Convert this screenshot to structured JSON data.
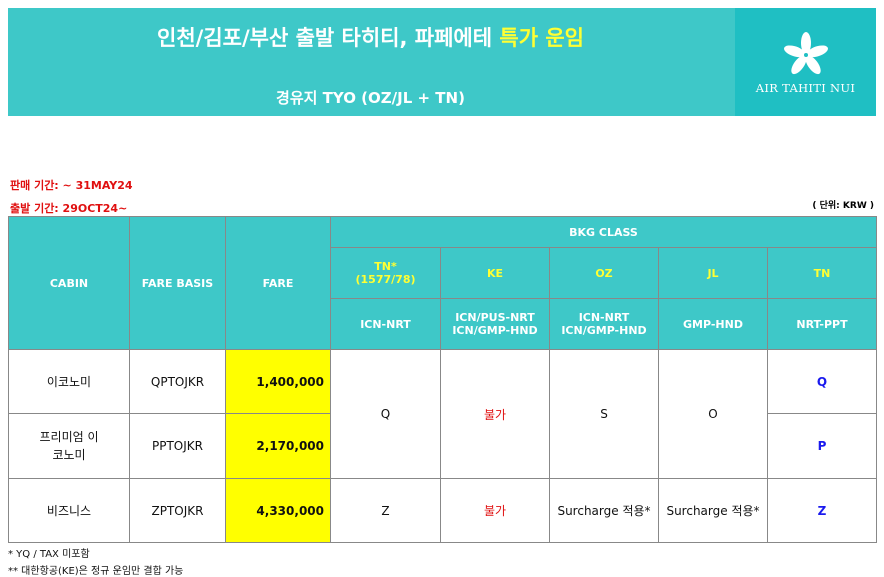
{
  "banner": {
    "title_main": "인천/김포/부산 출발 타히티, 파페에테 ",
    "title_highlight": "특가 운임",
    "subtitle": "경유지 TYO (OZ/JL + TN)",
    "logo_text": "AIR TAHITI NUI",
    "logo_icon": "tiare-flower-icon"
  },
  "info": {
    "sale_period": "판매 기간:  ~ 31MAY24",
    "departure_period": "출발 기간:  29OCT24~",
    "unit": "( 단위: KRW )"
  },
  "table": {
    "headers": {
      "cabin": "CABIN",
      "fare_basis": "FARE BASIS",
      "fare": "FARE",
      "bkg_class": "BKG CLASS",
      "airlines": [
        {
          "code": "TN*",
          "code2": "(1577/78)",
          "route": "ICN-NRT"
        },
        {
          "code": "KE",
          "code2": "",
          "route": "ICN/PUS-NRT ICN/GMP-HND"
        },
        {
          "code": "OZ",
          "code2": "",
          "route": "ICN-NRT ICN/GMP-HND"
        },
        {
          "code": "JL",
          "code2": "",
          "route": "GMP-HND"
        },
        {
          "code": "TN",
          "code2": "",
          "route": "NRT-PPT"
        }
      ]
    },
    "rows": [
      {
        "cabin": "이코노미",
        "basis": "QPTOJKR",
        "fare": "1,400,000",
        "tn_ppt": "Q"
      },
      {
        "cabin": "프리미엄 이코노미",
        "basis": "PPTOJKR",
        "fare": "2,170,000",
        "tn_ppt": "P"
      },
      {
        "cabin": "비즈니스",
        "basis": "ZPTOJKR",
        "fare": "4,330,000",
        "tn_ppt": "Z"
      }
    ],
    "merged": {
      "tn_econ": "Q",
      "ke_econ": "불가",
      "oz_econ": "S",
      "jl_econ": "O"
    },
    "biz": {
      "tn": "Z",
      "ke": "불가",
      "oz": "Surcharge 적용*",
      "jl": "Surcharge 적용*"
    }
  },
  "footnotes": [
    "* YQ / TAX 미포함",
    "** 대한항공(KE)은 정규 운임만 결합 가능"
  ],
  "colors": {
    "teal": "#3ec8c8",
    "yellow": "#ffff00",
    "red": "#e01010",
    "blue": "#1a1aee"
  }
}
